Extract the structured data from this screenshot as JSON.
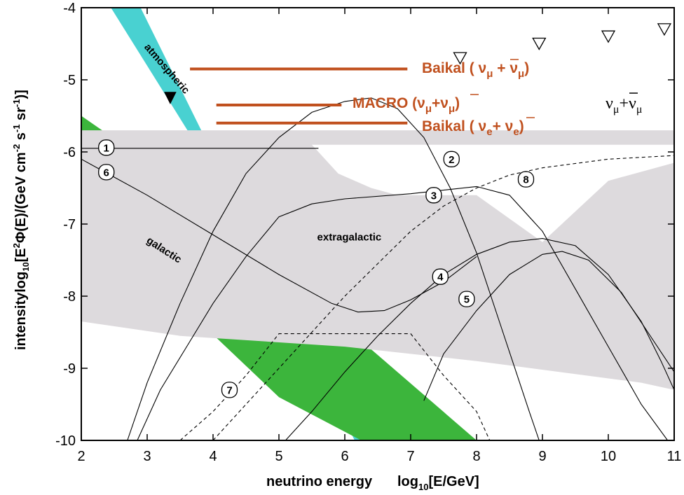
{
  "chart_data": {
    "type": "line",
    "xlabel_main": "neutrino energy",
    "xlabel_unit": "log",
    "xlabel_unit_sub": "10",
    "xlabel_unit_rest": "[E/GeV]",
    "ylabel": "intensity   log10[E²Φ(E)/(GeV cm⁻² s⁻¹ sr⁻¹)]",
    "xlim": [
      2,
      11
    ],
    "ylim": [
      -10,
      -4
    ],
    "x_ticks": [
      "2",
      "3",
      "4",
      "5",
      "6",
      "7",
      "8",
      "9",
      "10",
      "11"
    ],
    "y_ticks": [
      "-4",
      "-5",
      "-6",
      "-7",
      "-8",
      "-9",
      "-10"
    ],
    "bands": [
      {
        "name": "atmospheric",
        "color": "#49d1d1",
        "edge_upper": [
          [
            2.45,
            -4.0
          ],
          [
            6.55,
            -10.0
          ]
        ],
        "edge_lower": [
          [
            2.9,
            -4.0
          ],
          [
            6.15,
            -10.0
          ]
        ]
      },
      {
        "name": "galactic",
        "color": "#3cb53c",
        "edge_upper": [
          [
            2.0,
            -5.5
          ],
          [
            4.85,
            -7.3
          ],
          [
            6.1,
            -8.5
          ],
          [
            8.0,
            -10.0
          ]
        ],
        "edge_lower": [
          [
            2.0,
            -7.4
          ],
          [
            3.5,
            -8.1
          ],
          [
            5.0,
            -9.4
          ],
          [
            6.25,
            -10.0
          ]
        ]
      },
      {
        "name": "extragalactic",
        "color": "#dddadd",
        "polygon": [
          [
            2.0,
            -5.7
          ],
          [
            11.0,
            -5.7
          ],
          [
            11.0,
            -9.3
          ],
          [
            10.5,
            -9.2
          ],
          [
            8.0,
            -8.9
          ],
          [
            6.0,
            -8.7
          ],
          [
            3.5,
            -8.55
          ],
          [
            2.0,
            -8.35
          ]
        ]
      }
    ],
    "white_region": [
      [
        5.5,
        -5.9
      ],
      [
        11.0,
        -5.9
      ],
      [
        11.0,
        -6.15
      ],
      [
        10.0,
        -6.4
      ],
      [
        9.0,
        -7.25
      ],
      [
        8.0,
        -6.6
      ],
      [
        6.8,
        -6.6
      ],
      [
        6.4,
        -6.5
      ],
      [
        5.9,
        -6.3
      ]
    ],
    "series": [
      {
        "name": "1",
        "style": "solid",
        "points": [
          [
            2.0,
            -5.95
          ],
          [
            5.6,
            -5.95
          ]
        ]
      },
      {
        "name": "2",
        "style": "solid",
        "points": [
          [
            2.7,
            -10.0
          ],
          [
            3.0,
            -9.2
          ],
          [
            3.5,
            -8.1
          ],
          [
            4.0,
            -7.1
          ],
          [
            4.5,
            -6.3
          ],
          [
            5.0,
            -5.8
          ],
          [
            5.5,
            -5.45
          ],
          [
            6.0,
            -5.3
          ],
          [
            6.4,
            -5.25
          ],
          [
            6.8,
            -5.4
          ],
          [
            7.2,
            -5.8
          ],
          [
            7.6,
            -6.5
          ],
          [
            8.0,
            -7.4
          ],
          [
            8.4,
            -8.5
          ],
          [
            8.8,
            -9.6
          ],
          [
            8.95,
            -10.0
          ]
        ]
      },
      {
        "name": "3",
        "style": "solid",
        "points": [
          [
            2.85,
            -10.0
          ],
          [
            3.2,
            -9.3
          ],
          [
            3.6,
            -8.7
          ],
          [
            4.0,
            -8.1
          ],
          [
            4.5,
            -7.45
          ],
          [
            5.0,
            -6.9
          ],
          [
            5.5,
            -6.72
          ],
          [
            6.0,
            -6.65
          ],
          [
            7.0,
            -6.58
          ],
          [
            8.0,
            -6.48
          ],
          [
            8.5,
            -6.6
          ],
          [
            9.0,
            -7.1
          ],
          [
            9.5,
            -7.9
          ],
          [
            10.0,
            -8.7
          ],
          [
            10.5,
            -9.5
          ],
          [
            10.9,
            -10.0
          ]
        ]
      },
      {
        "name": "4",
        "style": "solid",
        "points": [
          [
            5.1,
            -10.0
          ],
          [
            5.5,
            -9.6
          ],
          [
            6.0,
            -9.05
          ],
          [
            6.5,
            -8.55
          ],
          [
            7.0,
            -8.1
          ],
          [
            7.5,
            -7.7
          ],
          [
            8.0,
            -7.42
          ],
          [
            8.5,
            -7.25
          ],
          [
            9.0,
            -7.2
          ],
          [
            9.5,
            -7.3
          ],
          [
            10.0,
            -7.7
          ],
          [
            10.5,
            -8.35
          ],
          [
            10.8,
            -8.9
          ],
          [
            11.0,
            -9.3
          ]
        ]
      },
      {
        "name": "5",
        "style": "solid",
        "points": [
          [
            7.2,
            -9.45
          ],
          [
            7.5,
            -8.8
          ],
          [
            8.0,
            -8.2
          ],
          [
            8.5,
            -7.7
          ],
          [
            9.0,
            -7.42
          ],
          [
            9.3,
            -7.38
          ],
          [
            9.7,
            -7.5
          ],
          [
            10.2,
            -7.95
          ],
          [
            10.6,
            -8.5
          ],
          [
            11.0,
            -9.05
          ]
        ]
      },
      {
        "name": "6",
        "style": "solid",
        "points": [
          [
            2.0,
            -6.1
          ],
          [
            3.0,
            -6.6
          ],
          [
            4.0,
            -7.15
          ],
          [
            5.0,
            -7.7
          ],
          [
            5.8,
            -8.1
          ],
          [
            6.2,
            -8.22
          ],
          [
            6.6,
            -8.2
          ],
          [
            7.0,
            -8.05
          ],
          [
            7.5,
            -7.8
          ],
          [
            8.0,
            -7.45
          ]
        ]
      },
      {
        "name": "7",
        "style": "dashed",
        "points": [
          [
            3.5,
            -10.0
          ],
          [
            4.0,
            -9.6
          ],
          [
            4.5,
            -9.1
          ],
          [
            5.0,
            -8.52
          ],
          [
            7.0,
            -8.52
          ],
          [
            7.5,
            -9.1
          ],
          [
            8.0,
            -9.6
          ],
          [
            8.2,
            -10.0
          ]
        ]
      },
      {
        "name": "8",
        "style": "dashed",
        "points": [
          [
            4.0,
            -10.0
          ],
          [
            4.5,
            -9.5
          ],
          [
            5.0,
            -9.0
          ],
          [
            5.5,
            -8.5
          ],
          [
            6.0,
            -8.0
          ],
          [
            6.5,
            -7.55
          ],
          [
            7.0,
            -7.1
          ],
          [
            7.5,
            -6.75
          ],
          [
            8.0,
            -6.5
          ],
          [
            8.5,
            -6.32
          ],
          [
            9.0,
            -6.22
          ],
          [
            10.0,
            -6.1
          ],
          [
            11.0,
            -6.05
          ]
        ]
      }
    ],
    "series_tags": [
      {
        "name": "1",
        "x": 2.38,
        "y": -5.94
      },
      {
        "name": "2",
        "x": 7.62,
        "y": -6.1
      },
      {
        "name": "3",
        "x": 7.35,
        "y": -6.6
      },
      {
        "name": "4",
        "x": 7.45,
        "y": -7.73
      },
      {
        "name": "5",
        "x": 7.85,
        "y": -8.04
      },
      {
        "name": "6",
        "x": 2.38,
        "y": -6.28
      },
      {
        "name": "7",
        "x": 4.25,
        "y": -9.3
      },
      {
        "name": "8",
        "x": 8.75,
        "y": -6.38
      }
    ],
    "limits": [
      {
        "label": "Baikal (νμ + ν̄μ)",
        "x_start": 3.65,
        "x_end": 6.95,
        "y": -4.85
      },
      {
        "label": "MACRO (νμ+ν̄μ)",
        "x_start": 4.05,
        "x_end": 5.95,
        "y": -5.35
      },
      {
        "label": "Baikal (νe+ ν̄e)",
        "x_start": 4.05,
        "x_end": 6.95,
        "y": -5.6
      }
    ],
    "open_triangles": [
      {
        "x": 7.75,
        "y": -4.7
      },
      {
        "x": 8.95,
        "y": -4.5
      },
      {
        "x": 10.0,
        "y": -4.4
      },
      {
        "x": 10.85,
        "y": -4.3
      }
    ],
    "filled_triangles": [
      {
        "x": 3.35,
        "y": -5.25
      }
    ],
    "annotations": [
      {
        "text": "atmospheric",
        "x": 2.95,
        "y": -4.55,
        "angle": 49
      },
      {
        "text": "galactic",
        "x": 2.98,
        "y": -7.25,
        "angle": 33
      },
      {
        "text": "extragalactic",
        "x": 5.58,
        "y": -7.23,
        "angle": 0
      }
    ],
    "grid": false
  },
  "limit_labels": {
    "baikal_mu": "Baikal ( ν",
    "baikal_mu_sub1": "μ",
    "baikal_mu_mid": " + ν",
    "baikal_mu_sub2": "μ",
    "baikal_mu_end": ")",
    "macro": "MACRO (ν",
    "macro_sub1": "μ",
    "macro_mid": "+ν",
    "macro_sub2": "μ",
    "macro_end": ")",
    "baikal_e": "Baikal ( ν",
    "baikal_e_sub1": "e",
    "baikal_e_mid": "+ ν",
    "baikal_e_sub2": "e",
    "baikal_e_end": ")"
  },
  "flavor_label": {
    "nu1": "ν",
    "sub1": "μ",
    "plus": "+ν",
    "sub2": "μ"
  },
  "y_axis_title": {
    "intensity": "intensity",
    "log": "log",
    "log_sub": "10",
    "bracket_open": "[E",
    "sup2": "2",
    "phi": "Φ(E)/(GeV cm",
    "sup_m2": "-2",
    "s": " s",
    "sup_m1a": "-1",
    "sr": " sr",
    "sup_m1b": "-1",
    "close": ")]"
  },
  "colors": {
    "atmospheric": "#49d1d1",
    "galactic": "#3cb53c",
    "extragalactic": "#dddadd",
    "limit_line": "#c0501e"
  }
}
